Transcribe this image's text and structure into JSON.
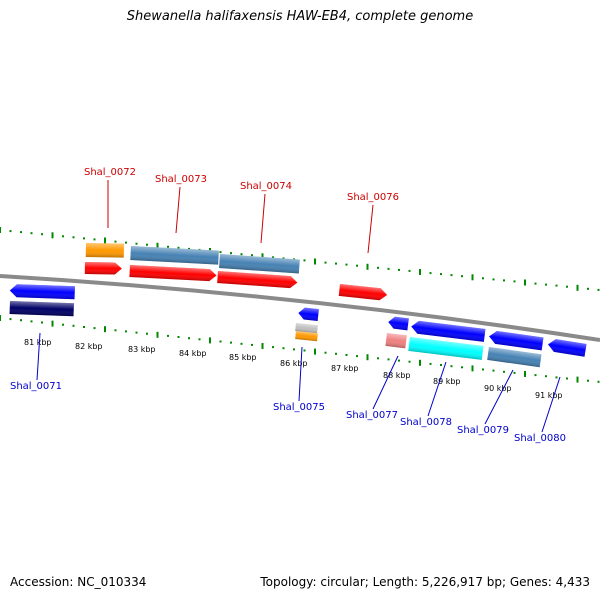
{
  "title": "Shewanella halifaxensis HAW-EB4, complete genome",
  "footer": {
    "accession": "Accession: NC_010334",
    "stats": "Topology: circular; Length: 5,226,917 bp; Genes: 4,433"
  },
  "scale_labels": [
    "81 kbp",
    "82 kbp",
    "83 kbp",
    "84 kbp",
    "85 kbp",
    "86 kbp",
    "87 kbp",
    "88 kbp",
    "89 kbp",
    "90 kbp",
    "91 kbp"
  ],
  "genes_forward": [
    "Shal_0072",
    "Shal_0073",
    "Shal_0074",
    "Shal_0076"
  ],
  "genes_reverse": [
    "Shal_0071",
    "Shal_0075",
    "Shal_0077",
    "Shal_0078",
    "Shal_0079",
    "Shal_0080"
  ],
  "colors": {
    "forward_label": "#cc0000",
    "reverse_label": "#0000cc",
    "tick": "#008800",
    "backbone": "#808080",
    "cds_forward": "#ff0000",
    "cds_reverse": "#0000ff",
    "gene_orange": "#ff9900",
    "gene_steel": "#4682b4",
    "gene_navy": "#000066",
    "gene_cyan": "#00ffff",
    "gene_pink": "#f08080",
    "gene_grey": "#c0c0c0"
  }
}
